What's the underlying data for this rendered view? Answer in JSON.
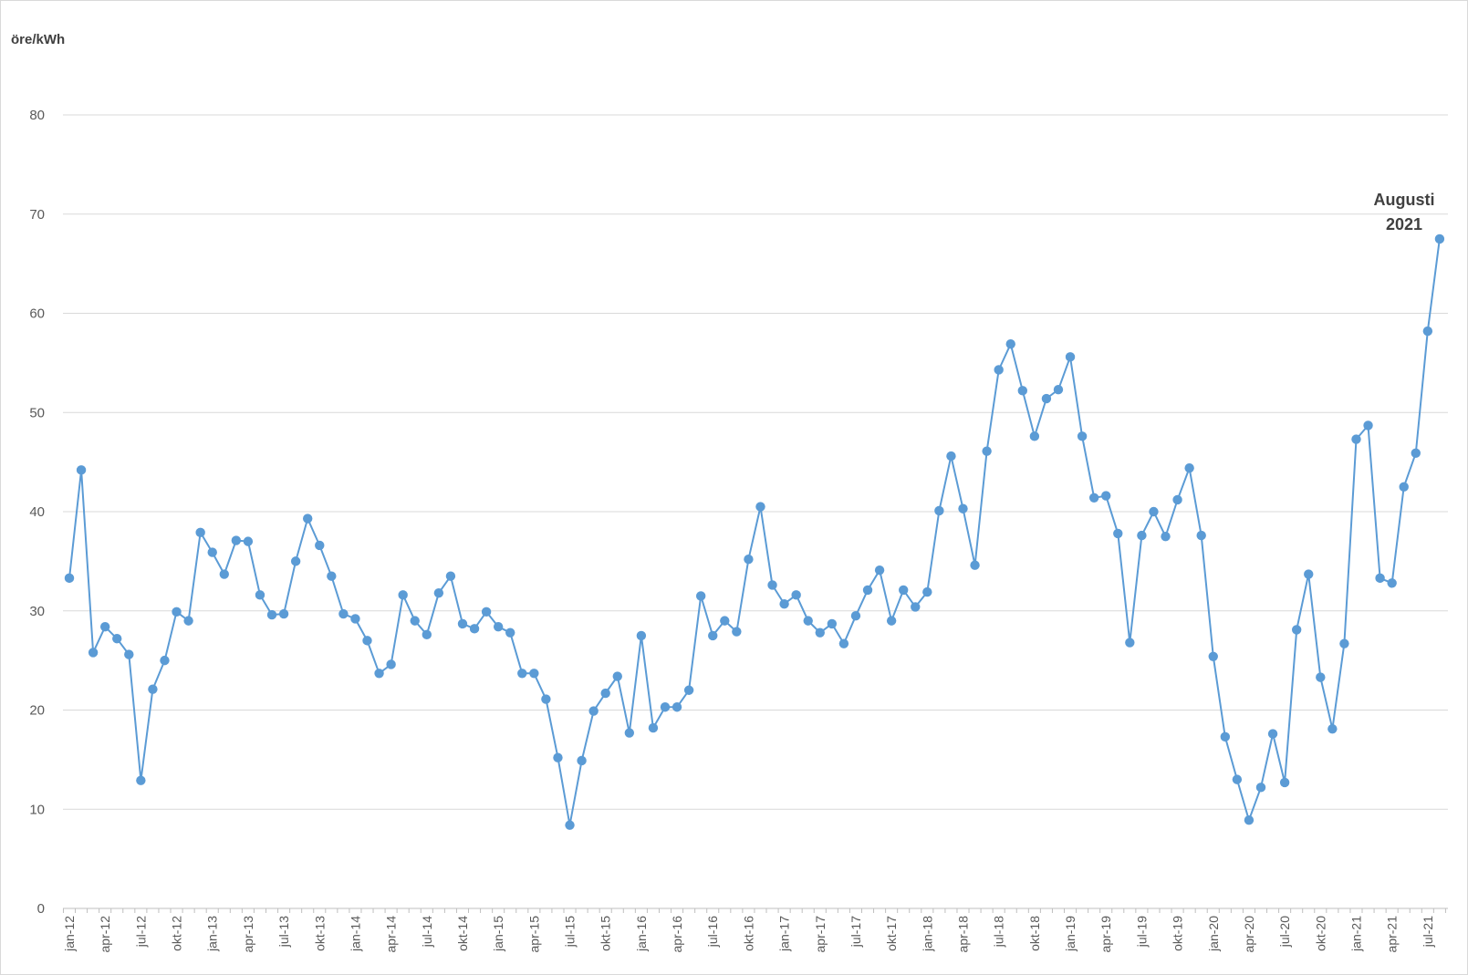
{
  "chart_data": {
    "type": "line",
    "title": "",
    "unit_label": "öre/kWh",
    "xlabel": "",
    "ylabel": "öre/kWh",
    "ylim": [
      0,
      80
    ],
    "yticks": [
      0,
      10,
      20,
      30,
      40,
      50,
      60,
      70,
      80
    ],
    "grid": true,
    "legend": "none",
    "line_color": "#5B9BD5",
    "grid_color": "#d9d9d9",
    "axis_color": "#bfbfbf",
    "x_tick_labels": [
      "jan-12",
      "apr-12",
      "jul-12",
      "okt-12",
      "jan-13",
      "apr-13",
      "jul-13",
      "okt-13",
      "jan-14",
      "apr-14",
      "jul-14",
      "okt-14",
      "jan-15",
      "apr-15",
      "jul-15",
      "okt-15",
      "jan-16",
      "apr-16",
      "jul-16",
      "okt-16",
      "jan-17",
      "apr-17",
      "jul-17",
      "okt-17",
      "jan-18",
      "apr-18",
      "jul-18",
      "okt-18",
      "jan-19",
      "apr-19",
      "jul-19",
      "okt-19",
      "jan-20",
      "apr-20",
      "jul-20",
      "okt-20",
      "jan-21",
      "apr-21",
      "jul-21"
    ],
    "series": [
      {
        "values": [
          33.3,
          44.2,
          25.8,
          28.4,
          27.2,
          25.6,
          12.9,
          22.1,
          25.0,
          29.9,
          29.0,
          37.9,
          35.9,
          33.7,
          37.1,
          37.0,
          31.6,
          29.6,
          29.7,
          35.0,
          39.3,
          36.6,
          33.5,
          29.7,
          29.2,
          27.0,
          23.7,
          24.6,
          31.6,
          29.0,
          27.6,
          31.8,
          33.5,
          28.7,
          28.2,
          29.9,
          28.4,
          27.8,
          23.7,
          23.7,
          21.1,
          15.2,
          8.4,
          14.9,
          19.9,
          21.7,
          23.4,
          17.7,
          27.5,
          18.2,
          20.3,
          20.3,
          22.0,
          31.5,
          27.5,
          29.0,
          27.9,
          35.2,
          40.5,
          32.6,
          30.7,
          31.6,
          29.0,
          27.8,
          28.7,
          26.7,
          29.5,
          32.1,
          34.1,
          29.0,
          32.1,
          30.4,
          31.9,
          40.1,
          45.6,
          40.3,
          34.6,
          46.1,
          54.3,
          56.9,
          52.2,
          47.6,
          51.4,
          52.3,
          55.6,
          47.6,
          41.4,
          41.6,
          37.8,
          26.8,
          37.6,
          40.0,
          37.5,
          41.2,
          44.4,
          37.6,
          25.4,
          17.3,
          13.0,
          8.9,
          12.2,
          17.6,
          12.7,
          28.1,
          33.7,
          23.3,
          18.1,
          26.7,
          47.3,
          48.7,
          33.3,
          32.8,
          42.5,
          45.9,
          58.2,
          67.5
        ]
      }
    ],
    "annotation": {
      "line1": "Augusti",
      "line2": "2021"
    }
  }
}
